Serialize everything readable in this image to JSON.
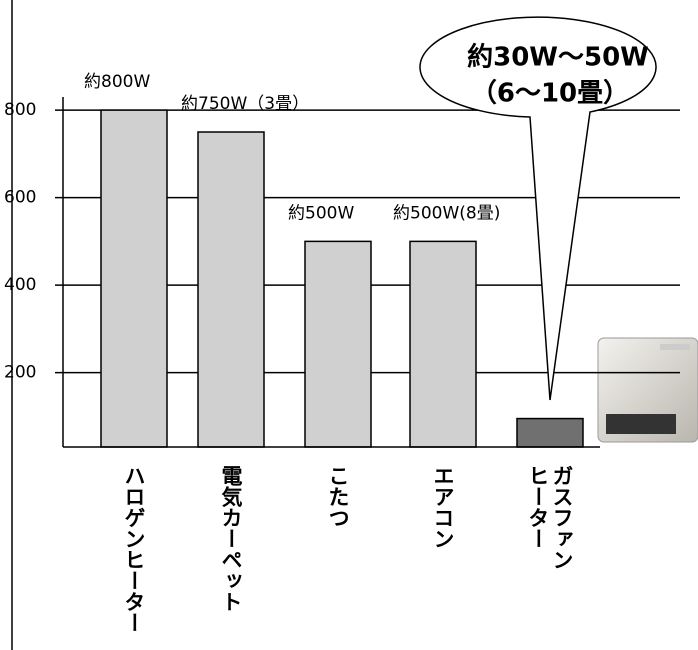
{
  "chart_data": {
    "type": "bar",
    "categories": [
      "ハロゲンヒーター",
      "電気カーペット",
      "こたつ",
      "エアコン",
      "ガスファンヒーター"
    ],
    "values": [
      800,
      750,
      500,
      500,
      95
    ],
    "value_labels": [
      "約800W",
      "約750W（3畳）",
      "約500W",
      "約500W(8畳)",
      null
    ],
    "colors": [
      "#d0d0d0",
      "#d0d0d0",
      "#d0d0d0",
      "#d0d0d0",
      "#707070"
    ],
    "ylim": [
      30,
      830
    ],
    "yticks": [
      200,
      400,
      600,
      800
    ],
    "grid": true,
    "annotations": [
      "約30W～50W",
      "（6～10畳）"
    ]
  }
}
